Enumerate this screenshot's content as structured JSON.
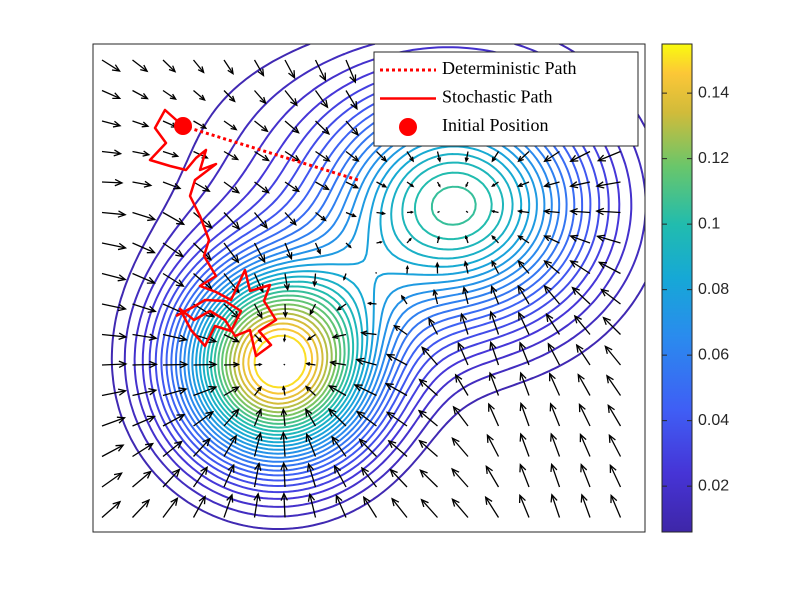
{
  "chart_data": {
    "type": "contour",
    "colormap": "parula",
    "levels": [
      0.01,
      0.015,
      0.02,
      0.025,
      0.03,
      0.035,
      0.04,
      0.045,
      0.05,
      0.055,
      0.06,
      0.065,
      0.07,
      0.075,
      0.08,
      0.085,
      0.09,
      0.095,
      0.1,
      0.105,
      0.11,
      0.115,
      0.12,
      0.125,
      0.13,
      0.135,
      0.14,
      0.145,
      0.15
    ],
    "clim": [
      0.006,
      0.155
    ],
    "cticks": [
      0.02,
      0.04,
      0.06,
      0.08,
      0.1,
      0.12,
      0.14
    ],
    "legend": "upper right",
    "series": [
      {
        "name": "Deterministic Path",
        "color": "#ff0000",
        "style": "dotted"
      },
      {
        "name": "Stochastic Path",
        "color": "#ff0000",
        "style": "solid"
      },
      {
        "name": "Initial Position",
        "color": "#ff0000",
        "style": "marker"
      }
    ]
  }
}
